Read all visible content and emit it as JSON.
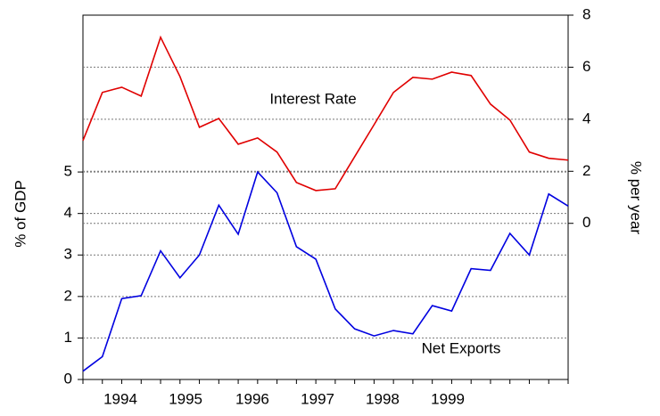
{
  "chart_data": {
    "type": "line",
    "categories": [
      null,
      null,
      null,
      null,
      null,
      null,
      null,
      null,
      null,
      null,
      null,
      null,
      null,
      null,
      null,
      null,
      null,
      null,
      null,
      null,
      null,
      null,
      null,
      null,
      null,
      null
    ],
    "xlim": [
      0,
      25
    ],
    "xticks": [
      {
        "value": 1.93,
        "label": "1994"
      },
      {
        "value": 5.29,
        "label": "1995"
      },
      {
        "value": 8.73,
        "label": "1996"
      },
      {
        "value": 12.09,
        "label": "1997"
      },
      {
        "value": 15.44,
        "label": "1998"
      },
      {
        "value": 18.8,
        "label": "1999"
      }
    ],
    "ylabel": "% of GDP",
    "ylim": [
      0,
      8.78
    ],
    "yticks": [
      0,
      1,
      2,
      3,
      4,
      5
    ],
    "y2label": "% per year",
    "y2lim": [
      -6,
      8
    ],
    "y2ticks": [
      0,
      2,
      4,
      6,
      8
    ],
    "grid": true,
    "annotations": [
      {
        "text": "Interest Rate",
        "series": 0
      },
      {
        "text": "Net Exports",
        "series": 1
      }
    ],
    "series": [
      {
        "color": "#e00000",
        "axis": "y2",
        "values": [
          3.18,
          5.03,
          5.23,
          4.89,
          7.15,
          5.64,
          3.69,
          4.03,
          3.04,
          3.28,
          2.74,
          1.57,
          1.26,
          1.33,
          2.56,
          3.79,
          5.03,
          5.61,
          5.54,
          5.81,
          5.68,
          4.58,
          3.97,
          2.74,
          2.5,
          2.43
        ]
      },
      {
        "color": "#0000e0",
        "values": [
          0.2,
          0.55,
          1.95,
          2.02,
          3.1,
          2.45,
          3.0,
          4.2,
          3.5,
          5.0,
          4.5,
          3.2,
          2.9,
          1.7,
          1.22,
          1.05,
          1.18,
          1.1,
          1.78,
          1.65,
          2.67,
          2.63,
          3.52,
          3.0,
          4.47,
          4.18
        ]
      }
    ]
  }
}
